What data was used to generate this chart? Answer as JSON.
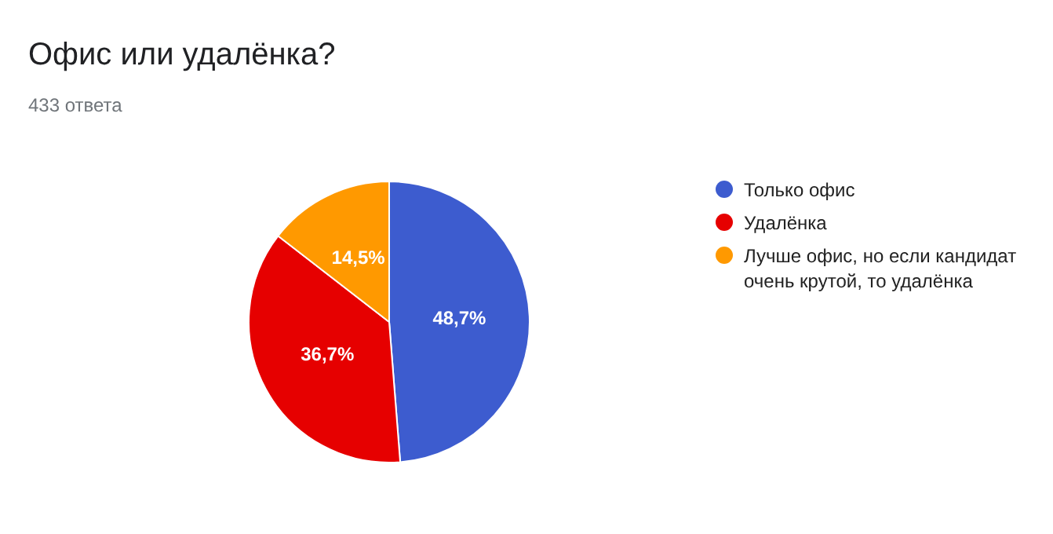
{
  "chart_data": {
    "type": "pie",
    "title": "Офис или удалёнка?",
    "subtitle": "433 ответа",
    "categories": [
      "Только офис",
      "Удалёнка",
      "Лучше офис, но если кандидат очень крутой, то удалёнка"
    ],
    "values": [
      48.7,
      36.7,
      14.5
    ],
    "colors": [
      "#3d5ccf",
      "#e60000",
      "#ff9900"
    ],
    "value_labels": [
      "48,7%",
      "36,7%",
      "14,5%"
    ],
    "legend": "right"
  }
}
